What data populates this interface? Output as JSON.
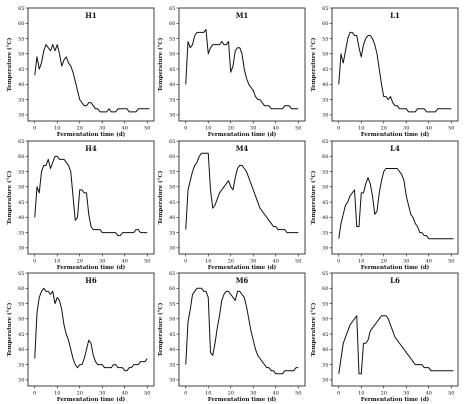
{
  "chart_data": [
    {
      "type": "line",
      "title": "H1",
      "xlabel": "Fermentation time (d)",
      "ylabel": "Temperature (°C)",
      "xlim": [
        -3,
        53
      ],
      "ylim": [
        28,
        65
      ],
      "xticks": [
        "0",
        "10",
        "20",
        "30",
        "40",
        "50"
      ],
      "yticks": [
        "30",
        "35",
        "40",
        "45",
        "50",
        "55",
        "60",
        "65"
      ],
      "x": [
        0,
        1,
        2,
        3,
        4,
        5,
        6,
        7,
        8,
        9,
        10,
        11,
        12,
        13,
        14,
        15,
        16,
        17,
        18,
        19,
        20,
        21,
        22,
        23,
        24,
        25,
        26,
        27,
        28,
        29,
        30,
        31,
        32,
        33,
        34,
        35,
        36,
        37,
        38,
        39,
        40,
        41,
        42,
        43,
        44,
        45,
        46,
        47,
        48,
        49,
        50,
        51
      ],
      "y": [
        43,
        49,
        45,
        47,
        51,
        53,
        52,
        51,
        53,
        51,
        53,
        50,
        46,
        48,
        49,
        47,
        46,
        44,
        41,
        38,
        35,
        34,
        33,
        33,
        34,
        34,
        33,
        32,
        32,
        31,
        31,
        31,
        31,
        32,
        31,
        31,
        31,
        32,
        32,
        32,
        32,
        32,
        31,
        31,
        31,
        31,
        32,
        32,
        32,
        32,
        32,
        32
      ]
    },
    {
      "type": "line",
      "title": "M1",
      "xlabel": "Fermentation time (d)",
      "ylabel": "Temperature (°C)",
      "xlim": [
        -3,
        53
      ],
      "ylim": [
        28,
        65
      ],
      "xticks": [
        "0",
        "10",
        "20",
        "30",
        "40",
        "50"
      ],
      "yticks": [
        "30",
        "35",
        "40",
        "45",
        "50",
        "55",
        "60",
        "65"
      ],
      "x": [
        0,
        1,
        2,
        3,
        4,
        5,
        6,
        7,
        8,
        9,
        10,
        11,
        12,
        13,
        14,
        15,
        16,
        17,
        18,
        19,
        20,
        21,
        22,
        23,
        24,
        25,
        26,
        27,
        28,
        29,
        30,
        31,
        32,
        33,
        34,
        35,
        36,
        37,
        38,
        39,
        40,
        41,
        42,
        43,
        44,
        45,
        46,
        47,
        48,
        49,
        50
      ],
      "y": [
        40,
        54,
        52,
        53,
        56,
        57,
        57,
        57,
        57,
        58,
        50,
        52,
        53,
        53,
        53,
        53,
        54,
        53,
        53,
        54,
        44,
        46,
        51,
        52,
        52,
        50,
        45,
        42,
        40,
        39,
        38,
        36,
        35,
        35,
        34,
        33,
        33,
        33,
        32,
        32,
        32,
        32,
        32,
        32,
        33,
        33,
        33,
        32,
        32,
        32,
        32
      ]
    },
    {
      "type": "line",
      "title": "L1",
      "xlabel": "Fermentation time (d)",
      "ylabel": "Temperature (°C)",
      "xlim": [
        -3,
        53
      ],
      "ylim": [
        28,
        65
      ],
      "xticks": [
        "0",
        "10",
        "20",
        "30",
        "40",
        "50"
      ],
      "yticks": [
        "30",
        "35",
        "40",
        "45",
        "50",
        "55",
        "60",
        "65"
      ],
      "x": [
        0,
        1,
        2,
        3,
        4,
        5,
        6,
        7,
        8,
        9,
        10,
        11,
        12,
        13,
        14,
        15,
        16,
        17,
        18,
        19,
        20,
        21,
        22,
        23,
        24,
        25,
        26,
        27,
        28,
        29,
        30,
        31,
        32,
        33,
        34,
        35,
        36,
        37,
        38,
        39,
        40,
        41,
        42,
        43,
        44,
        45,
        46,
        47,
        48,
        49,
        50
      ],
      "y": [
        40,
        50,
        47,
        51,
        55,
        57,
        57,
        56,
        56,
        52,
        49,
        53,
        55,
        56,
        56,
        55,
        53,
        50,
        45,
        40,
        36,
        36,
        35,
        36,
        34,
        33,
        33,
        32,
        32,
        32,
        32,
        31,
        31,
        31,
        31,
        32,
        32,
        32,
        32,
        31,
        31,
        31,
        31,
        31,
        32,
        32,
        32,
        32,
        32,
        32,
        32
      ]
    },
    {
      "type": "line",
      "title": "H4",
      "xlabel": "Fermentation time (d)",
      "ylabel": "Temperature (°C)",
      "xlim": [
        -3,
        53
      ],
      "ylim": [
        28,
        65
      ],
      "xticks": [
        "0",
        "10",
        "20",
        "30",
        "40",
        "50"
      ],
      "yticks": [
        "30",
        "35",
        "40",
        "45",
        "50",
        "55",
        "60",
        "65"
      ],
      "x": [
        0,
        1,
        2,
        3,
        4,
        5,
        6,
        7,
        8,
        9,
        10,
        11,
        12,
        13,
        14,
        15,
        16,
        17,
        18,
        19,
        20,
        21,
        22,
        23,
        24,
        25,
        26,
        27,
        28,
        29,
        30,
        31,
        32,
        33,
        34,
        35,
        36,
        37,
        38,
        39,
        40,
        41,
        42,
        43,
        44,
        45,
        46,
        47,
        48,
        49,
        50
      ],
      "y": [
        40,
        50,
        48,
        55,
        57,
        57,
        59,
        56,
        58,
        60,
        60,
        59,
        59,
        59,
        58,
        57,
        55,
        47,
        39,
        40,
        49,
        49,
        48,
        48,
        41,
        37,
        36,
        36,
        36,
        36,
        35,
        35,
        35,
        35,
        35,
        35,
        35,
        34,
        34,
        35,
        35,
        35,
        35,
        35,
        35,
        36,
        36,
        35,
        35,
        35,
        35
      ]
    },
    {
      "type": "line",
      "title": "M4",
      "xlabel": "Fermentation time (d)",
      "ylabel": "Temperature (°C)",
      "xlim": [
        -3,
        53
      ],
      "ylim": [
        28,
        65
      ],
      "xticks": [
        "0",
        "10",
        "20",
        "30",
        "40",
        "50"
      ],
      "yticks": [
        "30",
        "35",
        "40",
        "45",
        "50",
        "55",
        "60",
        "65"
      ],
      "x": [
        0,
        1,
        2,
        3,
        4,
        5,
        6,
        7,
        8,
        9,
        10,
        11,
        12,
        13,
        14,
        15,
        16,
        17,
        18,
        19,
        20,
        21,
        22,
        23,
        24,
        25,
        26,
        27,
        28,
        29,
        30,
        31,
        32,
        33,
        34,
        35,
        36,
        37,
        38,
        39,
        40,
        41,
        42,
        43,
        44,
        45,
        46,
        47,
        48,
        49,
        50
      ],
      "y": [
        36,
        49,
        52,
        55,
        57,
        58,
        60,
        61,
        61,
        61,
        61,
        49,
        43,
        44,
        46,
        48,
        49,
        50,
        51,
        52,
        50,
        49,
        53,
        56,
        57,
        57,
        56,
        55,
        53,
        51,
        49,
        47,
        45,
        43,
        42,
        41,
        40,
        39,
        38,
        37,
        37,
        36,
        36,
        36,
        36,
        35,
        35,
        35,
        35,
        35,
        35
      ]
    },
    {
      "type": "line",
      "title": "L4",
      "xlabel": "Fermentation time (d)",
      "ylabel": "Temperature (°C)",
      "xlim": [
        -3,
        53
      ],
      "ylim": [
        28,
        65
      ],
      "xticks": [
        "0",
        "10",
        "20",
        "30",
        "40",
        "50"
      ],
      "yticks": [
        "30",
        "35",
        "40",
        "45",
        "50",
        "55",
        "60",
        "65"
      ],
      "x": [
        0,
        1,
        2,
        3,
        4,
        5,
        6,
        7,
        8,
        9,
        10,
        11,
        12,
        13,
        14,
        15,
        16,
        17,
        18,
        19,
        20,
        21,
        22,
        23,
        24,
        25,
        26,
        27,
        28,
        29,
        30,
        31,
        32,
        33,
        34,
        35,
        36,
        37,
        38,
        39,
        40,
        41,
        42,
        43,
        44,
        45,
        46,
        47,
        48,
        49,
        50,
        51
      ],
      "y": [
        33,
        38,
        41,
        44,
        45,
        47,
        48,
        49,
        37,
        37,
        48,
        48,
        51,
        53,
        51,
        47,
        41,
        42,
        48,
        52,
        55,
        56,
        56,
        56,
        56,
        56,
        56,
        55,
        54,
        52,
        47,
        44,
        41,
        40,
        38,
        37,
        35,
        35,
        34,
        34,
        33,
        33,
        33,
        33,
        33,
        33,
        33,
        33,
        33,
        33,
        33,
        33
      ]
    },
    {
      "type": "line",
      "title": "H6",
      "xlabel": "Fermentation time (d)",
      "ylabel": "Temperature (°C)",
      "xlim": [
        -3,
        53
      ],
      "ylim": [
        28,
        65
      ],
      "xticks": [
        "0",
        "10",
        "20",
        "30",
        "40",
        "50"
      ],
      "yticks": [
        "30",
        "35",
        "40",
        "45",
        "50",
        "55",
        "60",
        "65"
      ],
      "x": [
        0,
        1,
        2,
        3,
        4,
        5,
        6,
        7,
        8,
        9,
        10,
        11,
        12,
        13,
        14,
        15,
        16,
        17,
        18,
        19,
        20,
        21,
        22,
        23,
        24,
        25,
        26,
        27,
        28,
        29,
        30,
        31,
        32,
        33,
        34,
        35,
        36,
        37,
        38,
        39,
        40,
        41,
        42,
        43,
        44,
        45,
        46,
        47,
        48,
        49,
        50
      ],
      "y": [
        37,
        52,
        57,
        59,
        60,
        59,
        59,
        58,
        59,
        55,
        57,
        56,
        53,
        48,
        45,
        43,
        40,
        37,
        35,
        34,
        35,
        35,
        37,
        40,
        43,
        42,
        38,
        36,
        35,
        35,
        35,
        34,
        34,
        34,
        34,
        35,
        35,
        34,
        34,
        34,
        33,
        33,
        34,
        34,
        35,
        35,
        35,
        36,
        36,
        36,
        37
      ]
    },
    {
      "type": "line",
      "title": "M6",
      "xlabel": "Fermentation time (d)",
      "ylabel": "Temperature (°C)",
      "xlim": [
        -3,
        53
      ],
      "ylim": [
        28,
        65
      ],
      "xticks": [
        "0",
        "10",
        "20",
        "30",
        "40",
        "50"
      ],
      "yticks": [
        "30",
        "35",
        "40",
        "45",
        "50",
        "55",
        "60",
        "65"
      ],
      "x": [
        0,
        1,
        2,
        3,
        4,
        5,
        6,
        7,
        8,
        9,
        10,
        11,
        12,
        13,
        14,
        15,
        16,
        17,
        18,
        19,
        20,
        21,
        22,
        23,
        24,
        25,
        26,
        27,
        28,
        29,
        30,
        31,
        32,
        33,
        34,
        35,
        36,
        37,
        38,
        39,
        40,
        41,
        42,
        43,
        44,
        45,
        46,
        47,
        48,
        49,
        50
      ],
      "y": [
        35,
        49,
        53,
        58,
        59,
        60,
        60,
        60,
        59,
        59,
        57,
        39,
        38,
        42,
        47,
        51,
        56,
        58,
        59,
        59,
        58,
        57,
        56,
        59,
        59,
        58,
        57,
        54,
        50,
        46,
        43,
        40,
        38,
        37,
        36,
        35,
        34,
        34,
        33,
        33,
        32,
        32,
        32,
        32,
        33,
        33,
        33,
        33,
        33,
        34,
        34
      ]
    },
    {
      "type": "line",
      "title": "L6",
      "xlabel": "Fermentation time (d)",
      "ylabel": "Temperature (°C)",
      "xlim": [
        -3,
        53
      ],
      "ylim": [
        28,
        65
      ],
      "xticks": [
        "0",
        "10",
        "20",
        "30",
        "40",
        "50"
      ],
      "yticks": [
        "30",
        "35",
        "40",
        "45",
        "50",
        "55",
        "60",
        "65"
      ],
      "x": [
        0,
        1,
        2,
        3,
        4,
        5,
        6,
        7,
        8,
        9,
        10,
        11,
        12,
        13,
        14,
        15,
        16,
        17,
        18,
        19,
        20,
        21,
        22,
        23,
        24,
        25,
        26,
        27,
        28,
        29,
        30,
        31,
        32,
        33,
        34,
        35,
        36,
        37,
        38,
        39,
        40,
        41,
        42,
        43,
        44,
        45,
        46,
        47,
        48,
        49,
        50,
        51
      ],
      "y": [
        32,
        37,
        42,
        44,
        46,
        48,
        49,
        50,
        51,
        32,
        32,
        42,
        42,
        43,
        46,
        47,
        48,
        49,
        50,
        51,
        51,
        51,
        50,
        48,
        46,
        44,
        43,
        42,
        41,
        40,
        39,
        38,
        37,
        36,
        35,
        35,
        35,
        35,
        34,
        34,
        34,
        33,
        33,
        33,
        33,
        33,
        33,
        33,
        33,
        33,
        33,
        33
      ]
    }
  ]
}
